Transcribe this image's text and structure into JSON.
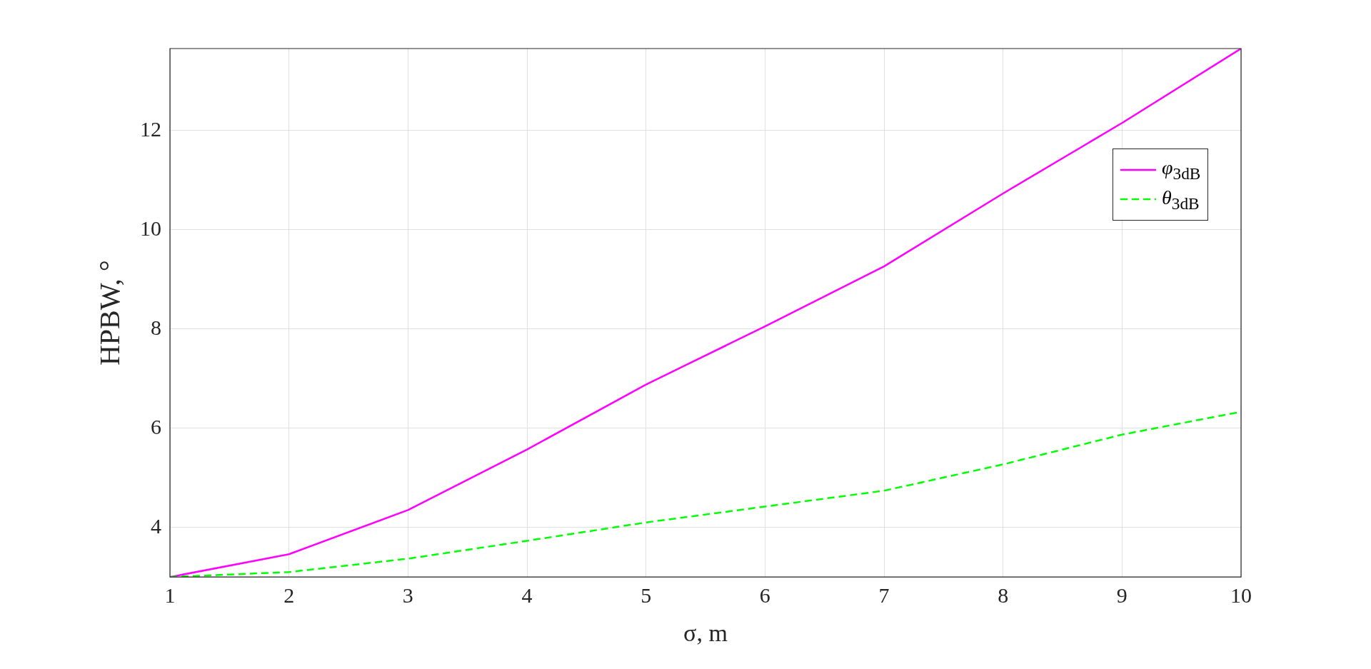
{
  "chart_data": {
    "type": "line",
    "xlabel": "σ, m",
    "ylabel": "HPBW, °",
    "x": [
      1,
      2,
      3,
      4,
      5,
      6,
      7,
      8,
      9,
      10
    ],
    "series": [
      {
        "name": "φ$_{3dB}$",
        "color": "#ff00ff",
        "line_style": "solid",
        "values": [
          3.0,
          3.46,
          4.35,
          5.57,
          6.88,
          8.05,
          9.26,
          10.73,
          12.15,
          13.65
        ]
      },
      {
        "name": "θ$_{3dB}$",
        "color": "#00ff00",
        "line_style": "dashed",
        "values": [
          3.0,
          3.1,
          3.37,
          3.73,
          4.1,
          4.42,
          4.74,
          5.27,
          5.87,
          6.33
        ]
      }
    ],
    "xlim": [
      1,
      10
    ],
    "xticks": [
      1,
      2,
      3,
      4,
      5,
      6,
      7,
      8,
      9,
      10
    ],
    "ylim": [
      3,
      13.65
    ],
    "yticks": [
      4,
      6,
      8,
      10,
      12
    ],
    "grid": true,
    "legend": "top right",
    "marker": "none"
  }
}
